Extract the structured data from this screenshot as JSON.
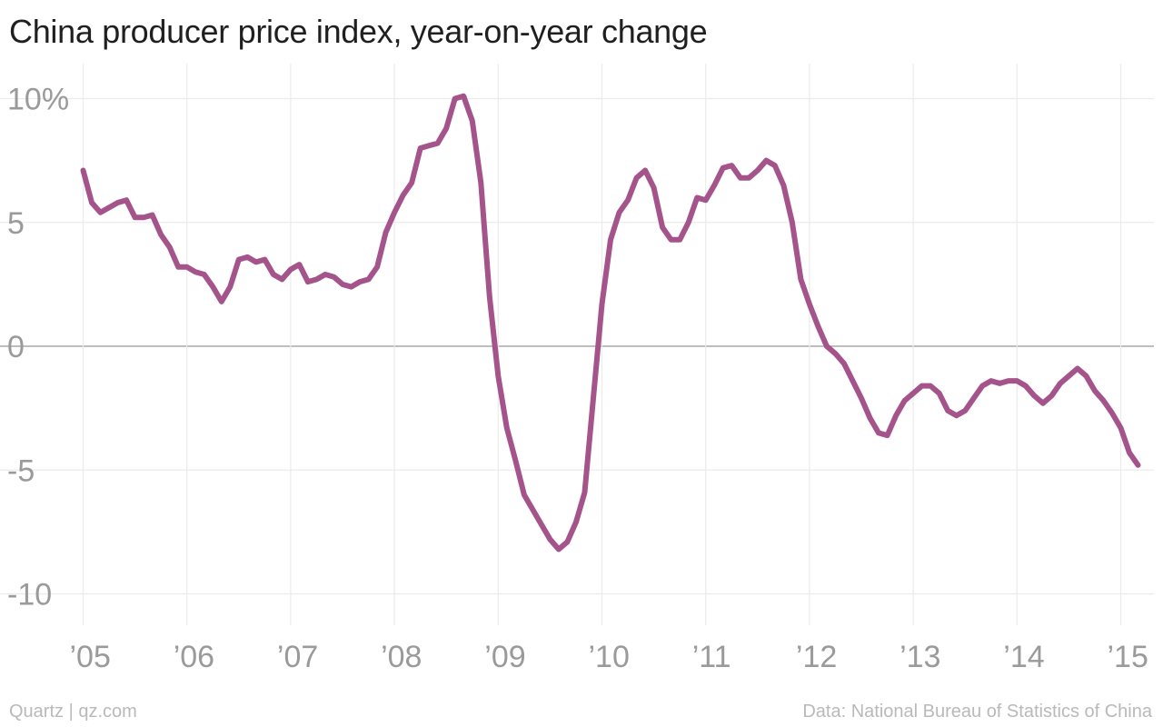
{
  "header": {
    "title": "China producer price index, year-on-year change"
  },
  "footer": {
    "credit": "Quartz | qz.com",
    "source": "Data: National Bureau of Statistics of China"
  },
  "colors": {
    "line": "#a4538b",
    "grid": "#ebebeb",
    "zero_line": "#a8a8a8",
    "tick_text": "#9a9a9a",
    "title_text": "#1f1f1f",
    "footer_text": "#b9b9b9"
  },
  "chart_data": {
    "type": "line",
    "title": "China producer price index, year-on-year change",
    "xlabel": "",
    "ylabel": "",
    "ylim": [
      -12,
      10.5
    ],
    "xlim": [
      "2005-01",
      "2015-03"
    ],
    "grid": true,
    "legend": "none",
    "y_ticks": [
      {
        "value": 10,
        "label": "10%"
      },
      {
        "value": 5,
        "label": "5"
      },
      {
        "value": 0,
        "label": "0"
      },
      {
        "value": -5,
        "label": "-5"
      },
      {
        "value": -10,
        "label": "-10"
      }
    ],
    "x_ticks": [
      {
        "value": "2005-01",
        "label": "’05"
      },
      {
        "value": "2006-01",
        "label": "’06"
      },
      {
        "value": "2007-01",
        "label": "’07"
      },
      {
        "value": "2008-01",
        "label": "’08"
      },
      {
        "value": "2009-01",
        "label": "’09"
      },
      {
        "value": "2010-01",
        "label": "’10"
      },
      {
        "value": "2011-01",
        "label": "’11"
      },
      {
        "value": "2012-01",
        "label": "’12"
      },
      {
        "value": "2013-01",
        "label": "’13"
      },
      {
        "value": "2014-01",
        "label": "’14"
      },
      {
        "value": "2015-01",
        "label": "’15"
      }
    ],
    "series": [
      {
        "x": [
          "2005-01",
          "2005-02",
          "2005-03",
          "2005-04",
          "2005-05",
          "2005-06",
          "2005-07",
          "2005-08",
          "2005-09",
          "2005-10",
          "2005-11",
          "2005-12",
          "2006-01",
          "2006-02",
          "2006-03",
          "2006-04",
          "2006-05",
          "2006-06",
          "2006-07",
          "2006-08",
          "2006-09",
          "2006-10",
          "2006-11",
          "2006-12",
          "2007-01",
          "2007-02",
          "2007-03",
          "2007-04",
          "2007-05",
          "2007-06",
          "2007-07",
          "2007-08",
          "2007-09",
          "2007-10",
          "2007-11",
          "2007-12",
          "2008-01",
          "2008-02",
          "2008-03",
          "2008-04",
          "2008-05",
          "2008-06",
          "2008-07",
          "2008-08",
          "2008-09",
          "2008-10",
          "2008-11",
          "2008-12",
          "2009-01",
          "2009-02",
          "2009-03",
          "2009-04",
          "2009-05",
          "2009-06",
          "2009-07",
          "2009-08",
          "2009-09",
          "2009-10",
          "2009-11",
          "2009-12",
          "2010-01",
          "2010-02",
          "2010-03",
          "2010-04",
          "2010-05",
          "2010-06",
          "2010-07",
          "2010-08",
          "2010-09",
          "2010-10",
          "2010-11",
          "2010-12",
          "2011-01",
          "2011-02",
          "2011-03",
          "2011-04",
          "2011-05",
          "2011-06",
          "2011-07",
          "2011-08",
          "2011-09",
          "2011-10",
          "2011-11",
          "2011-12",
          "2012-01",
          "2012-02",
          "2012-03",
          "2012-04",
          "2012-05",
          "2012-06",
          "2012-07",
          "2012-08",
          "2012-09",
          "2012-10",
          "2012-11",
          "2012-12",
          "2013-01",
          "2013-02",
          "2013-03",
          "2013-04",
          "2013-05",
          "2013-06",
          "2013-07",
          "2013-08",
          "2013-09",
          "2013-10",
          "2013-11",
          "2013-12",
          "2014-01",
          "2014-02",
          "2014-03",
          "2014-04",
          "2014-05",
          "2014-06",
          "2014-07",
          "2014-08",
          "2014-09",
          "2014-10",
          "2014-11",
          "2014-12",
          "2015-01",
          "2015-02",
          "2015-03"
        ],
        "values": [
          7.1,
          5.8,
          5.4,
          5.6,
          5.8,
          5.9,
          5.2,
          5.2,
          5.3,
          4.5,
          4.0,
          3.2,
          3.2,
          3.0,
          2.9,
          2.4,
          1.8,
          2.4,
          3.5,
          3.6,
          3.4,
          3.5,
          2.9,
          2.7,
          3.1,
          3.3,
          2.6,
          2.7,
          2.9,
          2.8,
          2.5,
          2.4,
          2.6,
          2.7,
          3.2,
          4.6,
          5.4,
          6.1,
          6.6,
          8.0,
          8.1,
          8.2,
          8.8,
          10.0,
          10.1,
          9.1,
          6.6,
          2.0,
          -1.2,
          -3.3,
          -4.6,
          -6.0,
          -6.6,
          -7.2,
          -7.8,
          -8.2,
          -7.9,
          -7.1,
          -5.9,
          -2.1,
          1.7,
          4.3,
          5.4,
          5.9,
          6.8,
          7.1,
          6.4,
          4.8,
          4.3,
          4.3,
          5.0,
          6.0,
          5.9,
          6.5,
          7.2,
          7.3,
          6.8,
          6.8,
          7.1,
          7.5,
          7.3,
          6.5,
          5.0,
          2.7,
          1.7,
          0.8,
          0.0,
          -0.3,
          -0.7,
          -1.4,
          -2.1,
          -2.9,
          -3.5,
          -3.6,
          -2.8,
          -2.2,
          -1.9,
          -1.6,
          -1.6,
          -1.9,
          -2.6,
          -2.8,
          -2.6,
          -2.1,
          -1.6,
          -1.4,
          -1.5,
          -1.4,
          -1.4,
          -1.6,
          -2.0,
          -2.3,
          -2.0,
          -1.5,
          -1.2,
          -0.9,
          -1.2,
          -1.8,
          -2.2,
          -2.7,
          -3.3,
          -4.3,
          -4.8
        ]
      }
    ]
  },
  "footer_note": ""
}
